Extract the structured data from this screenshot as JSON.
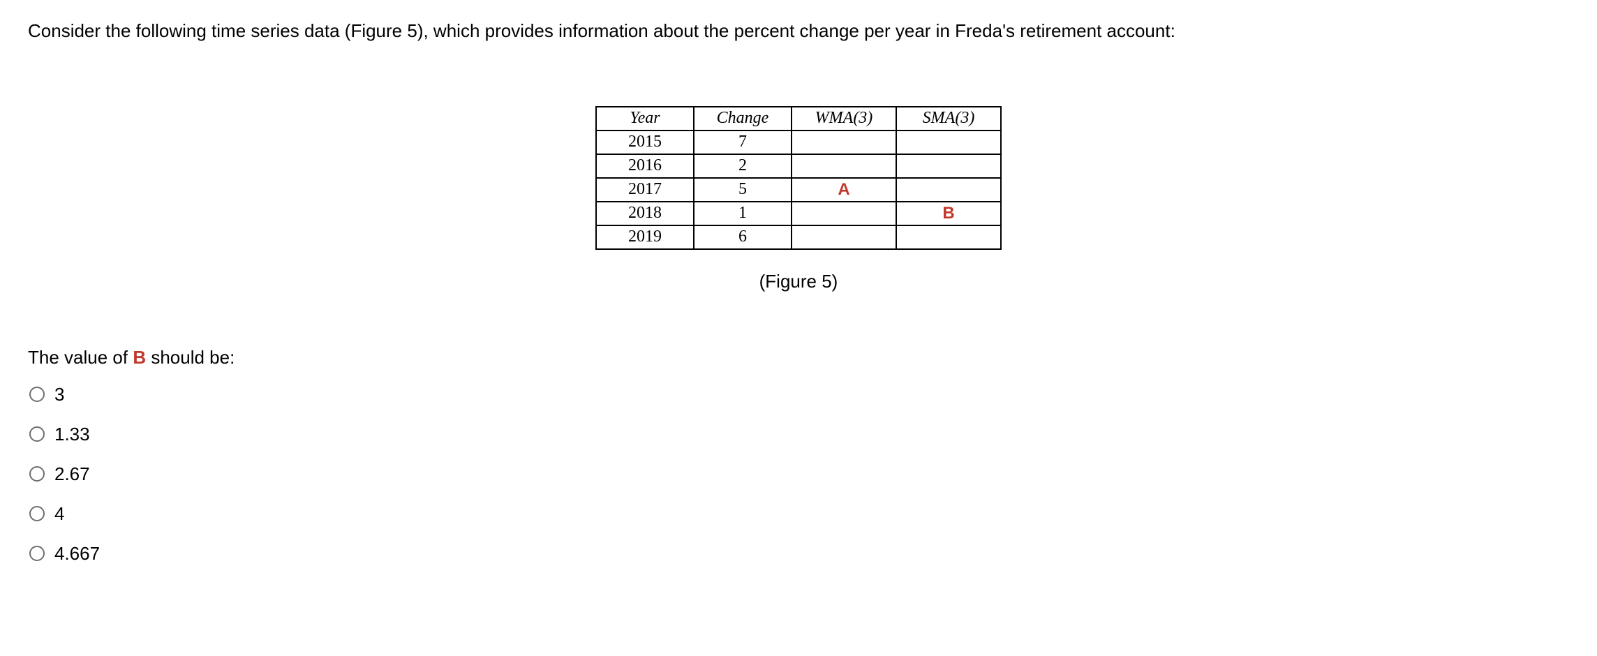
{
  "prompt_text": "Consider the following time series data (Figure 5), which provides information about the percent change per year in Freda's retirement account:",
  "table": {
    "headers": {
      "year": "Year",
      "change": "Change",
      "wma": "WMA(3)",
      "sma": "SMA(3)"
    },
    "rows": [
      {
        "year": "2015",
        "change": "7",
        "wma": "",
        "sma": ""
      },
      {
        "year": "2016",
        "change": "2",
        "wma": "",
        "sma": ""
      },
      {
        "year": "2017",
        "change": "5",
        "wma": "A",
        "sma": ""
      },
      {
        "year": "2018",
        "change": "1",
        "wma": "",
        "sma": "B"
      },
      {
        "year": "2019",
        "change": "6",
        "wma": "",
        "sma": ""
      }
    ],
    "highlight": {
      "A_row": 2,
      "B_row": 3
    }
  },
  "caption": "(Figure 5)",
  "question_prefix": "The value of ",
  "question_highlight": "B",
  "question_suffix": " should be:",
  "options": [
    "3",
    "1.33",
    "2.67",
    "4",
    "4.667"
  ],
  "styling": {
    "page_bg": "#ffffff",
    "text_color": "#000000",
    "highlight_color": "#c0392b",
    "border_color": "#000000",
    "radio_border": "#6e6e6e",
    "font_size_body": 26,
    "col_widths": {
      "year": 140,
      "change": 140,
      "wma": 150,
      "sma": 150
    }
  }
}
